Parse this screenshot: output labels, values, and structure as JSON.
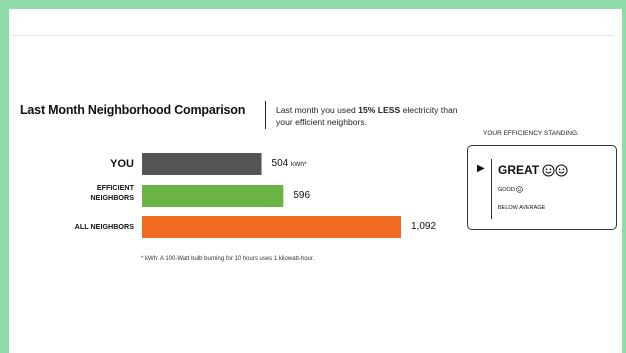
{
  "header": {
    "title": "Last Month Neighborhood Comparison",
    "subtitle_pre": "Last month you used ",
    "subtitle_bold": "15% LESS",
    "subtitle_post": " electricity than your efficient neighbors."
  },
  "chart_data": {
    "type": "bar",
    "orientation": "horizontal",
    "categories": [
      "YOU",
      "EFFICIENT NEIGHBORS",
      "ALL NEIGHBORS"
    ],
    "category_lines": [
      [
        "YOU"
      ],
      [
        "EFFICIENT",
        "NEIGHBORS"
      ],
      [
        "ALL NEIGHBORS"
      ]
    ],
    "values": [
      504,
      596,
      1092
    ],
    "value_labels": [
      "504",
      "596",
      "1,092"
    ],
    "unit": "kWh*",
    "colors": [
      "#555555",
      "#6ab344",
      "#f26b22"
    ],
    "xlim": [
      0,
      1092
    ],
    "grid": false,
    "footnote": "* kWh: A 100-Watt bulb burning for 10 hours uses 1 kilowatt-hour."
  },
  "standing": {
    "heading": "YOUR EFFICIENCY STANDING:",
    "selected_marker": "▶",
    "great_label": "GREAT",
    "good_label": "GOOD",
    "below_label": "BELOW AVERAGE",
    "great_faces": 2,
    "good_faces": 1,
    "below_faces": 0
  }
}
